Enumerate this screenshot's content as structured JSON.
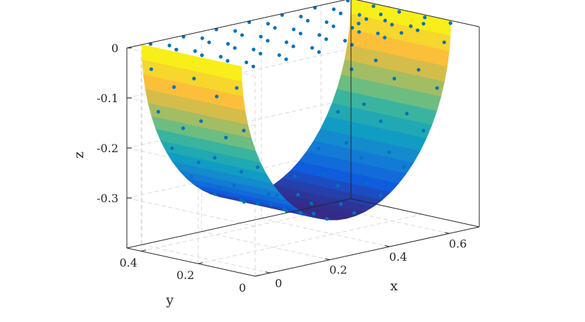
{
  "chart_data": {
    "type": "surface3d",
    "xlabel": "x",
    "ylabel": "y",
    "zlabel": "z",
    "xlim": [
      -0.05,
      0.7
    ],
    "ylim": [
      0,
      0.45
    ],
    "zlim": [
      -0.4,
      0
    ],
    "xticks": [
      {
        "value": 0,
        "label": "0"
      },
      {
        "value": 0.2,
        "label": "0.2"
      },
      {
        "value": 0.4,
        "label": "0.4"
      },
      {
        "value": 0.6,
        "label": "0.6"
      }
    ],
    "yticks": [
      {
        "value": 0,
        "label": "0"
      },
      {
        "value": 0.2,
        "label": "0.2"
      },
      {
        "value": 0.4,
        "label": "0.4"
      }
    ],
    "zticks": [
      {
        "value": 0,
        "label": "0"
      },
      {
        "value": -0.1,
        "label": "-0.1"
      },
      {
        "value": -0.2,
        "label": "-0.2"
      },
      {
        "value": -0.3,
        "label": "-0.3"
      }
    ],
    "grid": true,
    "colormap": "parula",
    "surface": {
      "description_values": "half-cylinder trough, z from 0 at rim to about -0.35 at bottom",
      "radius": 0.35,
      "center_x": 0.35,
      "y_range": [
        0.1,
        0.45
      ],
      "z_rim": 0,
      "z_bottom": -0.35
    },
    "scatter": {
      "color": "#0072bd",
      "series": [
        {
          "role": "points on plane z=0 (projection)"
        },
        {
          "role": "points on surface"
        }
      ]
    },
    "colors": {
      "axis": "#262626",
      "grid": "#d9d9d9",
      "marker": "#0072bd"
    }
  }
}
